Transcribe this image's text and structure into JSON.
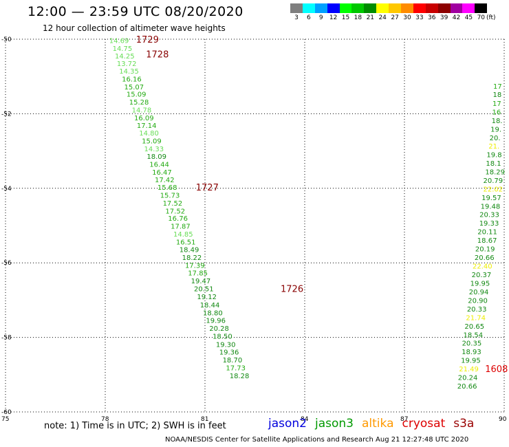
{
  "header": {
    "title": "12:00 — 23:59 UTC 08/20/2020",
    "subtitle": "12 hour collection of altimeter wave heights"
  },
  "color_scale": {
    "unit": "(ft)",
    "bins": [
      {
        "label": "3",
        "color": "#7f7f7f"
      },
      {
        "label": "6",
        "color": "#00ffff"
      },
      {
        "label": "9",
        "color": "#00a0ff"
      },
      {
        "label": "12",
        "color": "#0000ff"
      },
      {
        "label": "15",
        "color": "#00ff00"
      },
      {
        "label": "18",
        "color": "#00c800"
      },
      {
        "label": "21",
        "color": "#008c00"
      },
      {
        "label": "24",
        "color": "#ffff00"
      },
      {
        "label": "27",
        "color": "#ffc800"
      },
      {
        "label": "30",
        "color": "#ff8c00"
      },
      {
        "label": "33",
        "color": "#ff0000"
      },
      {
        "label": "36",
        "color": "#c80000"
      },
      {
        "label": "39",
        "color": "#8c0000"
      },
      {
        "label": "42",
        "color": "#a000a0"
      },
      {
        "label": "45",
        "color": "#ff00ff"
      },
      {
        "label": "70",
        "color": "#000000"
      }
    ]
  },
  "footer": {
    "note": "note:  1) Time is in UTC;  2) SWH is in feet",
    "satellites": [
      {
        "name": "jason2",
        "color": "#0000dd"
      },
      {
        "name": "jason3",
        "color": "#009900"
      },
      {
        "name": "altika",
        "color": "#ff9900"
      },
      {
        "name": "cryosat",
        "color": "#dd0000"
      },
      {
        "name": "s3a",
        "color": "#990000"
      }
    ],
    "credit": "NOAA/NESDIS Center for Satellite Applications and Research     Aug 21 12:27:48 UTC 2020"
  },
  "chart_data": {
    "type": "scatter",
    "title": "12:00 — 23:59 UTC 08/20/2020",
    "subtitle": "12 hour collection of altimeter wave heights",
    "x_ticks": [
      75,
      78,
      81,
      84,
      87,
      90
    ],
    "y_ticks": [
      -50,
      -52,
      -54,
      -56,
      -58,
      -60
    ],
    "xlim": [
      75,
      90
    ],
    "ylim": [
      -60,
      -50
    ],
    "grid": "dotted",
    "series": [
      {
        "name": "jason3",
        "points": [
          {
            "x": 78.45,
            "y": -50.03,
            "v": "14.69"
          },
          {
            "x": 78.55,
            "y": -50.24,
            "v": "14.75"
          },
          {
            "x": 78.62,
            "y": -50.44,
            "v": "14.25"
          },
          {
            "x": 78.68,
            "y": -50.65,
            "v": "13.72"
          },
          {
            "x": 78.75,
            "y": -50.85,
            "v": "14.35"
          },
          {
            "x": 78.83,
            "y": -51.06,
            "v": "16.16"
          },
          {
            "x": 78.9,
            "y": -51.27,
            "v": "15.07"
          },
          {
            "x": 78.97,
            "y": -51.47,
            "v": "15.09"
          },
          {
            "x": 79.05,
            "y": -51.68,
            "v": "15.28"
          },
          {
            "x": 79.13,
            "y": -51.89,
            "v": "14.78"
          },
          {
            "x": 79.2,
            "y": -52.1,
            "v": "16.09"
          },
          {
            "x": 79.28,
            "y": -52.31,
            "v": "17.14"
          },
          {
            "x": 79.35,
            "y": -52.51,
            "v": "14.80"
          },
          {
            "x": 79.43,
            "y": -52.72,
            "v": "15.09"
          },
          {
            "x": 79.5,
            "y": -52.93,
            "v": "14.33"
          },
          {
            "x": 79.58,
            "y": -53.14,
            "v": "18.09"
          },
          {
            "x": 79.66,
            "y": -53.35,
            "v": "16.44"
          },
          {
            "x": 79.74,
            "y": -53.56,
            "v": "16.47"
          },
          {
            "x": 79.82,
            "y": -53.76,
            "v": "17.42"
          },
          {
            "x": 79.9,
            "y": -53.97,
            "v": "15.68"
          },
          {
            "x": 79.98,
            "y": -54.18,
            "v": "15.73"
          },
          {
            "x": 80.06,
            "y": -54.39,
            "v": "17.52"
          },
          {
            "x": 80.14,
            "y": -54.6,
            "v": "17.52"
          },
          {
            "x": 80.22,
            "y": -54.8,
            "v": "16.76"
          },
          {
            "x": 80.3,
            "y": -55.01,
            "v": "17.87"
          },
          {
            "x": 80.38,
            "y": -55.22,
            "v": "14.85"
          },
          {
            "x": 80.46,
            "y": -55.43,
            "v": "16.51"
          },
          {
            "x": 80.56,
            "y": -55.64,
            "v": "18.49"
          },
          {
            "x": 80.64,
            "y": -55.85,
            "v": "18.22"
          },
          {
            "x": 80.73,
            "y": -56.06,
            "v": "17.39"
          },
          {
            "x": 80.82,
            "y": -56.26,
            "v": "17.85"
          },
          {
            "x": 80.91,
            "y": -56.48,
            "v": "19.47"
          },
          {
            "x": 81.0,
            "y": -56.69,
            "v": "20.51"
          },
          {
            "x": 81.09,
            "y": -56.9,
            "v": "19.12"
          },
          {
            "x": 81.18,
            "y": -57.12,
            "v": "18.44"
          },
          {
            "x": 81.27,
            "y": -57.33,
            "v": "18.80"
          },
          {
            "x": 81.36,
            "y": -57.54,
            "v": "19.96"
          },
          {
            "x": 81.46,
            "y": -57.75,
            "v": "20.28"
          },
          {
            "x": 81.56,
            "y": -57.96,
            "v": "18.50"
          },
          {
            "x": 81.66,
            "y": -58.18,
            "v": "19.30"
          },
          {
            "x": 81.76,
            "y": -58.39,
            "v": "19.36"
          },
          {
            "x": 81.86,
            "y": -58.6,
            "v": "18.70"
          },
          {
            "x": 81.96,
            "y": -58.81,
            "v": "17.73"
          },
          {
            "x": 82.07,
            "y": -59.02,
            "v": "18.28"
          }
        ],
        "pass_labels": [
          {
            "x": 79.05,
            "y": -50.0,
            "v": "1729"
          },
          {
            "x": 79.35,
            "y": -50.4,
            "v": "1728"
          },
          {
            "x": 80.85,
            "y": -53.97,
            "v": "1727"
          },
          {
            "x": 83.4,
            "y": -56.69,
            "v": "1726"
          }
        ]
      },
      {
        "name": "cryosat",
        "points": [
          {
            "x": 90.0,
            "y": -51.25,
            "v": "17"
          },
          {
            "x": 89.99,
            "y": -51.48,
            "v": "18"
          },
          {
            "x": 89.98,
            "y": -51.72,
            "v": "17"
          },
          {
            "x": 89.97,
            "y": -51.95,
            "v": "16"
          },
          {
            "x": 89.95,
            "y": -52.18,
            "v": "18."
          },
          {
            "x": 89.92,
            "y": -52.41,
            "v": "19."
          },
          {
            "x": 89.89,
            "y": -52.64,
            "v": "20."
          },
          {
            "x": 89.86,
            "y": -52.86,
            "v": "21."
          },
          {
            "x": 89.8,
            "y": -53.09,
            "v": "19.8"
          },
          {
            "x": 89.78,
            "y": -53.32,
            "v": "18.1"
          },
          {
            "x": 89.76,
            "y": -53.55,
            "v": "18.29"
          },
          {
            "x": 89.7,
            "y": -53.78,
            "v": "20.79"
          },
          {
            "x": 89.7,
            "y": -54.01,
            "v": "22.02"
          },
          {
            "x": 89.65,
            "y": -54.24,
            "v": "19.57"
          },
          {
            "x": 89.62,
            "y": -54.47,
            "v": "19.48"
          },
          {
            "x": 89.59,
            "y": -54.7,
            "v": "20.33"
          },
          {
            "x": 89.58,
            "y": -54.93,
            "v": "19.33"
          },
          {
            "x": 89.53,
            "y": -55.16,
            "v": "20.11"
          },
          {
            "x": 89.52,
            "y": -55.39,
            "v": "18.67"
          },
          {
            "x": 89.46,
            "y": -55.62,
            "v": "20.19"
          },
          {
            "x": 89.44,
            "y": -55.85,
            "v": "20.66"
          },
          {
            "x": 89.38,
            "y": -56.08,
            "v": "22.40"
          },
          {
            "x": 89.35,
            "y": -56.31,
            "v": "20.37"
          },
          {
            "x": 89.31,
            "y": -56.54,
            "v": "19.95"
          },
          {
            "x": 89.27,
            "y": -56.77,
            "v": "20.94"
          },
          {
            "x": 89.24,
            "y": -57.0,
            "v": "20.90"
          },
          {
            "x": 89.21,
            "y": -57.23,
            "v": "20.33"
          },
          {
            "x": 89.18,
            "y": -57.46,
            "v": "21.74"
          },
          {
            "x": 89.14,
            "y": -57.69,
            "v": "20.65"
          },
          {
            "x": 89.1,
            "y": -57.92,
            "v": "18.54"
          },
          {
            "x": 89.06,
            "y": -58.15,
            "v": "20.35"
          },
          {
            "x": 89.05,
            "y": -58.38,
            "v": "18.93"
          },
          {
            "x": 89.03,
            "y": -58.61,
            "v": "19.95"
          },
          {
            "x": 88.97,
            "y": -58.84,
            "v": "21.49"
          },
          {
            "x": 88.94,
            "y": -59.07,
            "v": "20.24"
          },
          {
            "x": 88.92,
            "y": -59.3,
            "v": "20.66"
          }
        ],
        "pass_labels": [
          {
            "x": 89.55,
            "y": -58.84,
            "v": "1608"
          }
        ]
      }
    ]
  }
}
